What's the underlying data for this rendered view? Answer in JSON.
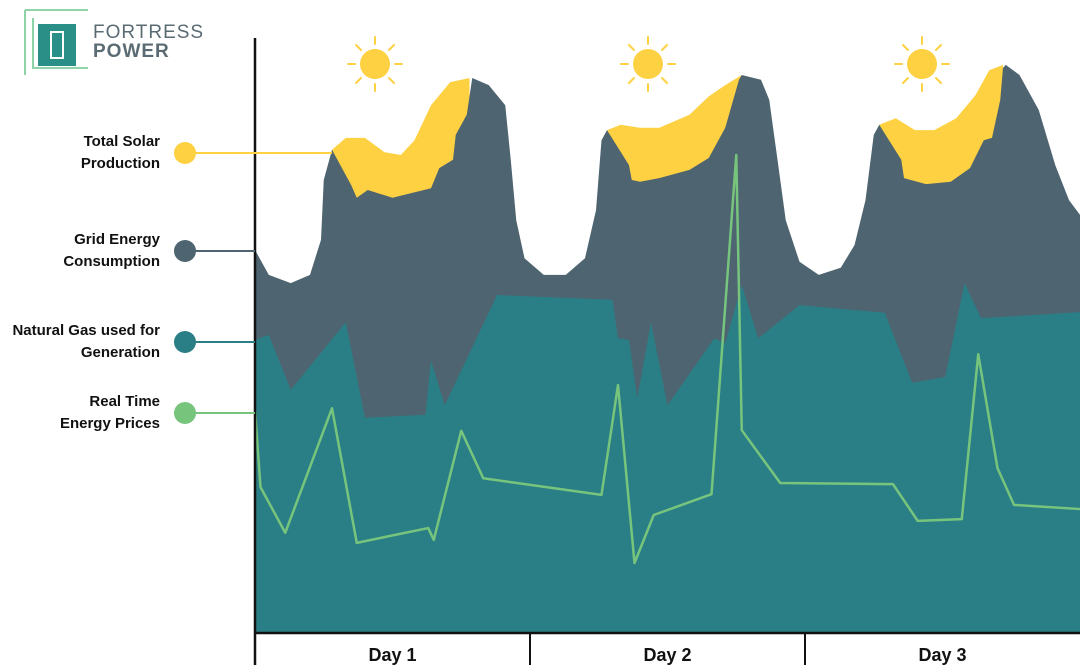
{
  "logo": {
    "line1": "FORTRESS",
    "line2": "POWER"
  },
  "chart_data": {
    "type": "area",
    "xlim": [
      0,
      3
    ],
    "ylim": [
      0,
      100
    ],
    "categories": [
      "Day 1",
      "Day 2",
      "Day 3"
    ],
    "series": [
      {
        "name": "Total Solar Production",
        "color": "#fdd142",
        "x": [
          0.28,
          0.33,
          0.4,
          0.47,
          0.53,
          0.58,
          0.64,
          0.71,
          0.78,
          1.0,
          1.28,
          1.33,
          1.4,
          1.47,
          1.58,
          1.65,
          1.71,
          1.77,
          2.0,
          2.27,
          2.33,
          2.4,
          2.47,
          2.55,
          2.62,
          2.67,
          2.72
        ],
        "values": [
          81.5,
          83.5,
          83.5,
          81.1,
          80.6,
          83.1,
          89.0,
          92.9,
          93.6,
          null,
          84.8,
          85.7,
          85.2,
          85.2,
          87.4,
          90.5,
          92.4,
          94.1,
          null,
          85.7,
          86.8,
          84.8,
          84.8,
          86.8,
          90.7,
          94.9,
          95.8
        ]
      },
      {
        "name": "Grid Energy Consumption",
        "color": "#4e6470",
        "x": [
          0,
          0.05,
          0.13,
          0.2,
          0.24,
          0.25,
          0.28,
          0.35,
          0.37,
          0.41,
          0.5,
          0.64,
          0.67,
          0.72,
          0.73,
          0.77,
          0.79,
          0.85,
          0.91,
          0.93,
          0.95,
          0.98,
          1.05,
          1.13,
          1.2,
          1.24,
          1.26,
          1.28,
          1.36,
          1.37,
          1.4,
          1.47,
          1.58,
          1.65,
          1.71,
          1.76,
          1.77,
          1.84,
          1.87,
          1.9,
          1.93,
          1.98,
          2.05,
          2.13,
          2.18,
          2.22,
          2.25,
          2.27,
          2.35,
          2.36,
          2.44,
          2.53,
          2.6,
          2.65,
          2.68,
          2.71,
          2.72,
          2.73,
          2.78,
          2.85,
          2.91,
          2.96,
          3.0
        ],
        "values": [
          64.6,
          60.4,
          59.0,
          60.4,
          66.3,
          76.4,
          81.5,
          75.5,
          73.4,
          74.7,
          73.4,
          75.0,
          78.4,
          79.8,
          84.0,
          87.4,
          93.6,
          92.4,
          89.0,
          79.8,
          69.6,
          63.2,
          60.4,
          60.4,
          63.2,
          71.3,
          83.1,
          84.8,
          78.9,
          76.4,
          76.1,
          76.7,
          78.1,
          80.1,
          85.2,
          93.3,
          94.1,
          93.3,
          89.9,
          79.8,
          69.6,
          62.6,
          60.4,
          61.6,
          65.4,
          73.0,
          84.0,
          85.7,
          79.8,
          76.7,
          75.7,
          76.1,
          78.4,
          83.1,
          83.5,
          89.9,
          95.3,
          95.8,
          94.1,
          88.2,
          78.9,
          73.0,
          70.5
        ]
      },
      {
        "name": "Natural Gas used for Generation",
        "color": "#2a7f86",
        "x": [
          0,
          0.05,
          0.13,
          0.33,
          0.4,
          0.62,
          0.64,
          0.69,
          0.88,
          1.3,
          1.32,
          1.36,
          1.39,
          1.44,
          1.5,
          1.67,
          1.71,
          1.77,
          1.83,
          1.98,
          2.29,
          2.39,
          2.51,
          2.58,
          2.64,
          3.0
        ],
        "values": [
          49.4,
          50.3,
          41.0,
          52.4,
          36.3,
          36.8,
          46.0,
          38.4,
          57.0,
          56.2,
          49.7,
          49.4,
          39.6,
          52.4,
          38.4,
          49.7,
          48.9,
          58.7,
          49.7,
          55.3,
          54.0,
          42.2,
          43.2,
          59.0,
          53.1,
          54.1
        ]
      },
      {
        "name": "Real Time Energy Prices",
        "color": "#77c47d",
        "type": "line",
        "x": [
          0,
          0.02,
          0.11,
          0.28,
          0.37,
          0.63,
          0.65,
          0.75,
          0.83,
          1.26,
          1.32,
          1.38,
          1.45,
          1.66,
          1.75,
          1.77,
          1.91,
          2.32,
          2.41,
          2.57,
          2.63,
          2.7,
          2.76,
          3.0
        ],
        "values": [
          37.6,
          24.6,
          16.9,
          37.9,
          15.2,
          17.7,
          15.7,
          34.1,
          26.1,
          23.3,
          41.8,
          11.8,
          19.9,
          23.4,
          80.6,
          34.2,
          25.3,
          25.1,
          18.9,
          19.2,
          47.0,
          27.8,
          21.6,
          20.9
        ]
      }
    ]
  }
}
